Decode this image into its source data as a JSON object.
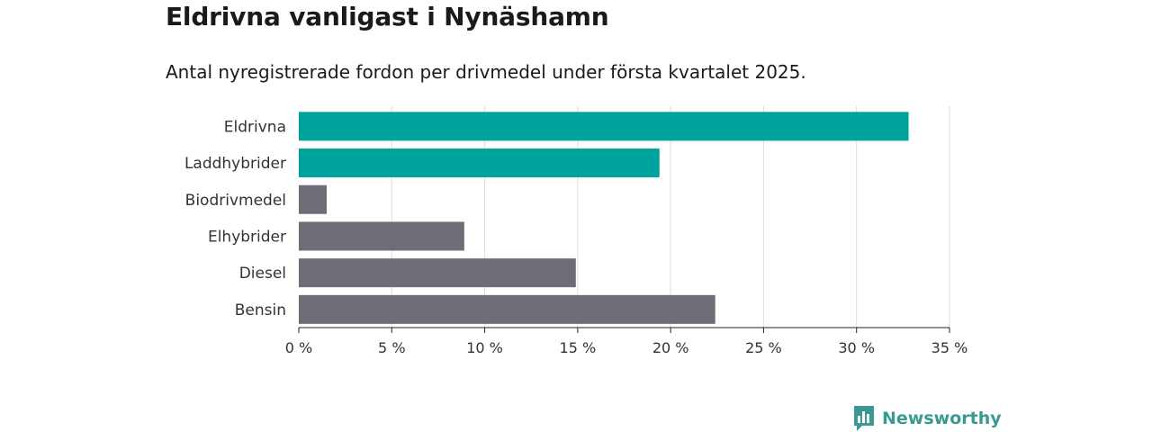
{
  "header": {
    "title": "Eldrivna vanligast i Nynäshamn",
    "subtitle": "Antal nyregistrerade fordon per drivmedel under första kvartalet 2025."
  },
  "chart_data": {
    "type": "bar",
    "orientation": "horizontal",
    "categories": [
      "Eldrivna",
      "Laddhybrider",
      "Biodrivmedel",
      "Elhybrider",
      "Diesel",
      "Bensin"
    ],
    "values": [
      32.8,
      19.4,
      1.5,
      8.9,
      14.9,
      22.4
    ],
    "colors": [
      "#00a39b",
      "#00a39b",
      "#6e6c75",
      "#6e6c75",
      "#6e6c75",
      "#6e6c75"
    ],
    "xlim": [
      0,
      35
    ],
    "xticks": [
      0,
      5,
      10,
      15,
      20,
      25,
      30,
      35
    ],
    "xtick_labels": [
      "0 %",
      "5 %",
      "10 %",
      "15 %",
      "20 %",
      "25 %",
      "30 %",
      "35 %"
    ],
    "grid": "vertical",
    "colors_meta": {
      "grid": "#dddddd",
      "axis": "#222222",
      "label": "#333333"
    }
  },
  "brand": {
    "name": "Newsworthy",
    "icon": "bar-chart-flag-icon",
    "color": "#3a9a92"
  }
}
